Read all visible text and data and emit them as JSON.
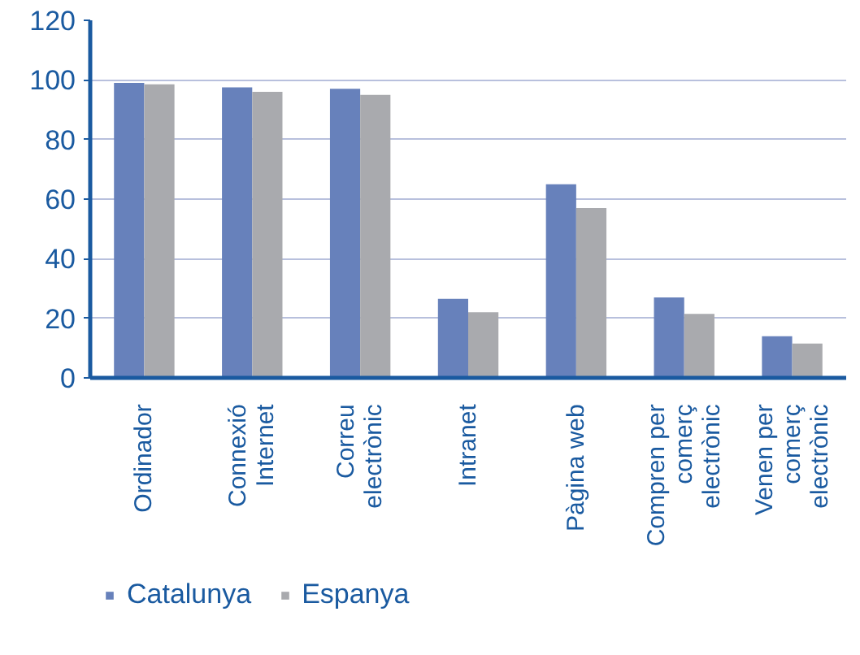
{
  "chart_data": {
    "type": "bar",
    "categories": [
      "Ordinador",
      "Connexió\nInternet",
      "Correu\nelectrònic",
      "Intranet",
      "Pàgina web",
      "Compren per\ncomerç\nelectrònic",
      "Venen per\ncomerç\nelectrònic"
    ],
    "series": [
      {
        "name": "Catalunya",
        "color": "#6781bb",
        "values": [
          99,
          97.5,
          97,
          26.5,
          65,
          27,
          14
        ]
      },
      {
        "name": "Espanya",
        "color": "#a9aaae",
        "values": [
          98.5,
          96,
          95,
          22,
          57,
          21.5,
          11.5
        ]
      }
    ],
    "ylim": [
      0,
      120
    ],
    "yticks": [
      0,
      20,
      40,
      60,
      80,
      100,
      120
    ],
    "grid": "y",
    "legend": "bottom left"
  }
}
